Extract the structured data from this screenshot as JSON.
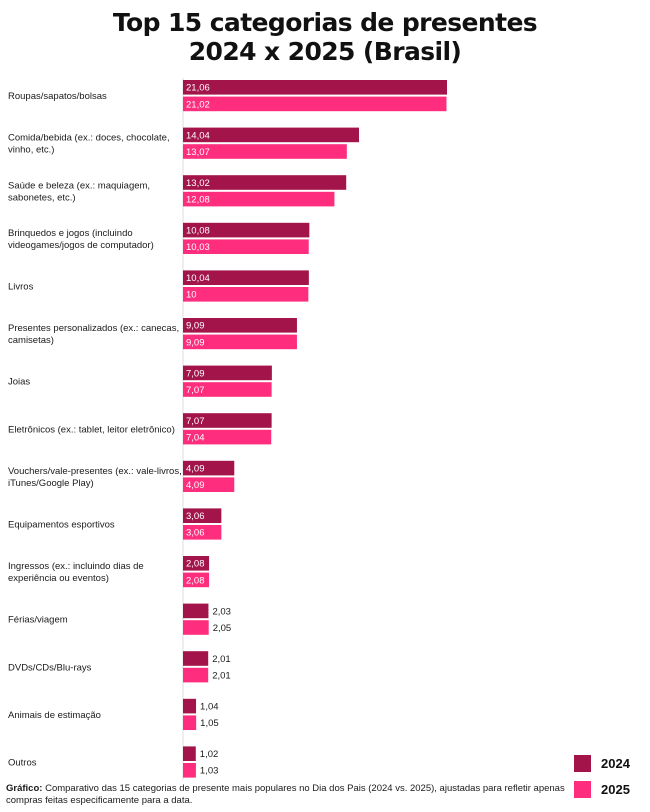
{
  "chart_data": {
    "type": "bar",
    "orientation": "horizontal",
    "title": [
      "Top 15 categorias de presentes",
      "2024 x 2025 (Brasil)"
    ],
    "categories": [
      [
        "Roupas/sapatos/bolsas"
      ],
      [
        "Comida/bebida (ex.: doces, chocolate,",
        "vinho, etc.)"
      ],
      [
        "Saúde e beleza (ex.: maquiagem,",
        "sabonetes, etc.)"
      ],
      [
        "Brinquedos e jogos (incluindo",
        "videogames/jogos de computador)"
      ],
      [
        "Livros"
      ],
      [
        "Presentes personalizados (ex.: canecas,",
        "camisetas)"
      ],
      [
        "Joias"
      ],
      [
        "Eletrônicos (ex.: tablet, leitor eletrônico)"
      ],
      [
        "Vouchers/vale-presentes (ex.: vale-livros,",
        "iTunes/Google Play)"
      ],
      [
        "Equipamentos esportivos"
      ],
      [
        "Ingressos (ex.: incluindo dias de",
        "experiência ou eventos)"
      ],
      [
        "Férias/viagem"
      ],
      [
        "DVDs/CDs/Blu-rays"
      ],
      [
        "Animais de estimação"
      ],
      [
        "Outros"
      ]
    ],
    "series": [
      {
        "name": "2024",
        "color": "#a3144a",
        "values": [
          21.06,
          14.04,
          13.02,
          10.08,
          10.04,
          9.09,
          7.09,
          7.07,
          4.09,
          3.06,
          2.08,
          2.03,
          2.01,
          1.04,
          1.02
        ],
        "labels": [
          "21,06",
          "14,04",
          "13,02",
          "10,08",
          "10,04",
          "9,09",
          "7,09",
          "7,07",
          "4,09",
          "3,06",
          "2,08",
          "2,03",
          "2,01",
          "1,04",
          "1,02"
        ]
      },
      {
        "name": "2025",
        "color": "#ff2d7d",
        "values": [
          21.02,
          13.07,
          12.08,
          10.03,
          10.0,
          9.09,
          7.07,
          7.04,
          4.09,
          3.06,
          2.08,
          2.05,
          2.01,
          1.05,
          1.03
        ],
        "labels": [
          "21,02",
          "13,07",
          "12,08",
          "10,03",
          "10",
          "9,09",
          "7,07",
          "7,04",
          "4,09",
          "3,06",
          "2,08",
          "2,05",
          "2,01",
          "1,05",
          "1,03"
        ]
      }
    ],
    "xlim": [
      0,
      21.06
    ],
    "grid": false,
    "legend_position": "bottom-right"
  },
  "note": {
    "label": "Gráfico:",
    "text": " Comparativo das 15 categorias de presente mais populares no Dia dos Pais (2024 vs. 2025), ajustadas para refletir apenas compras feitas especificamente para a data."
  }
}
